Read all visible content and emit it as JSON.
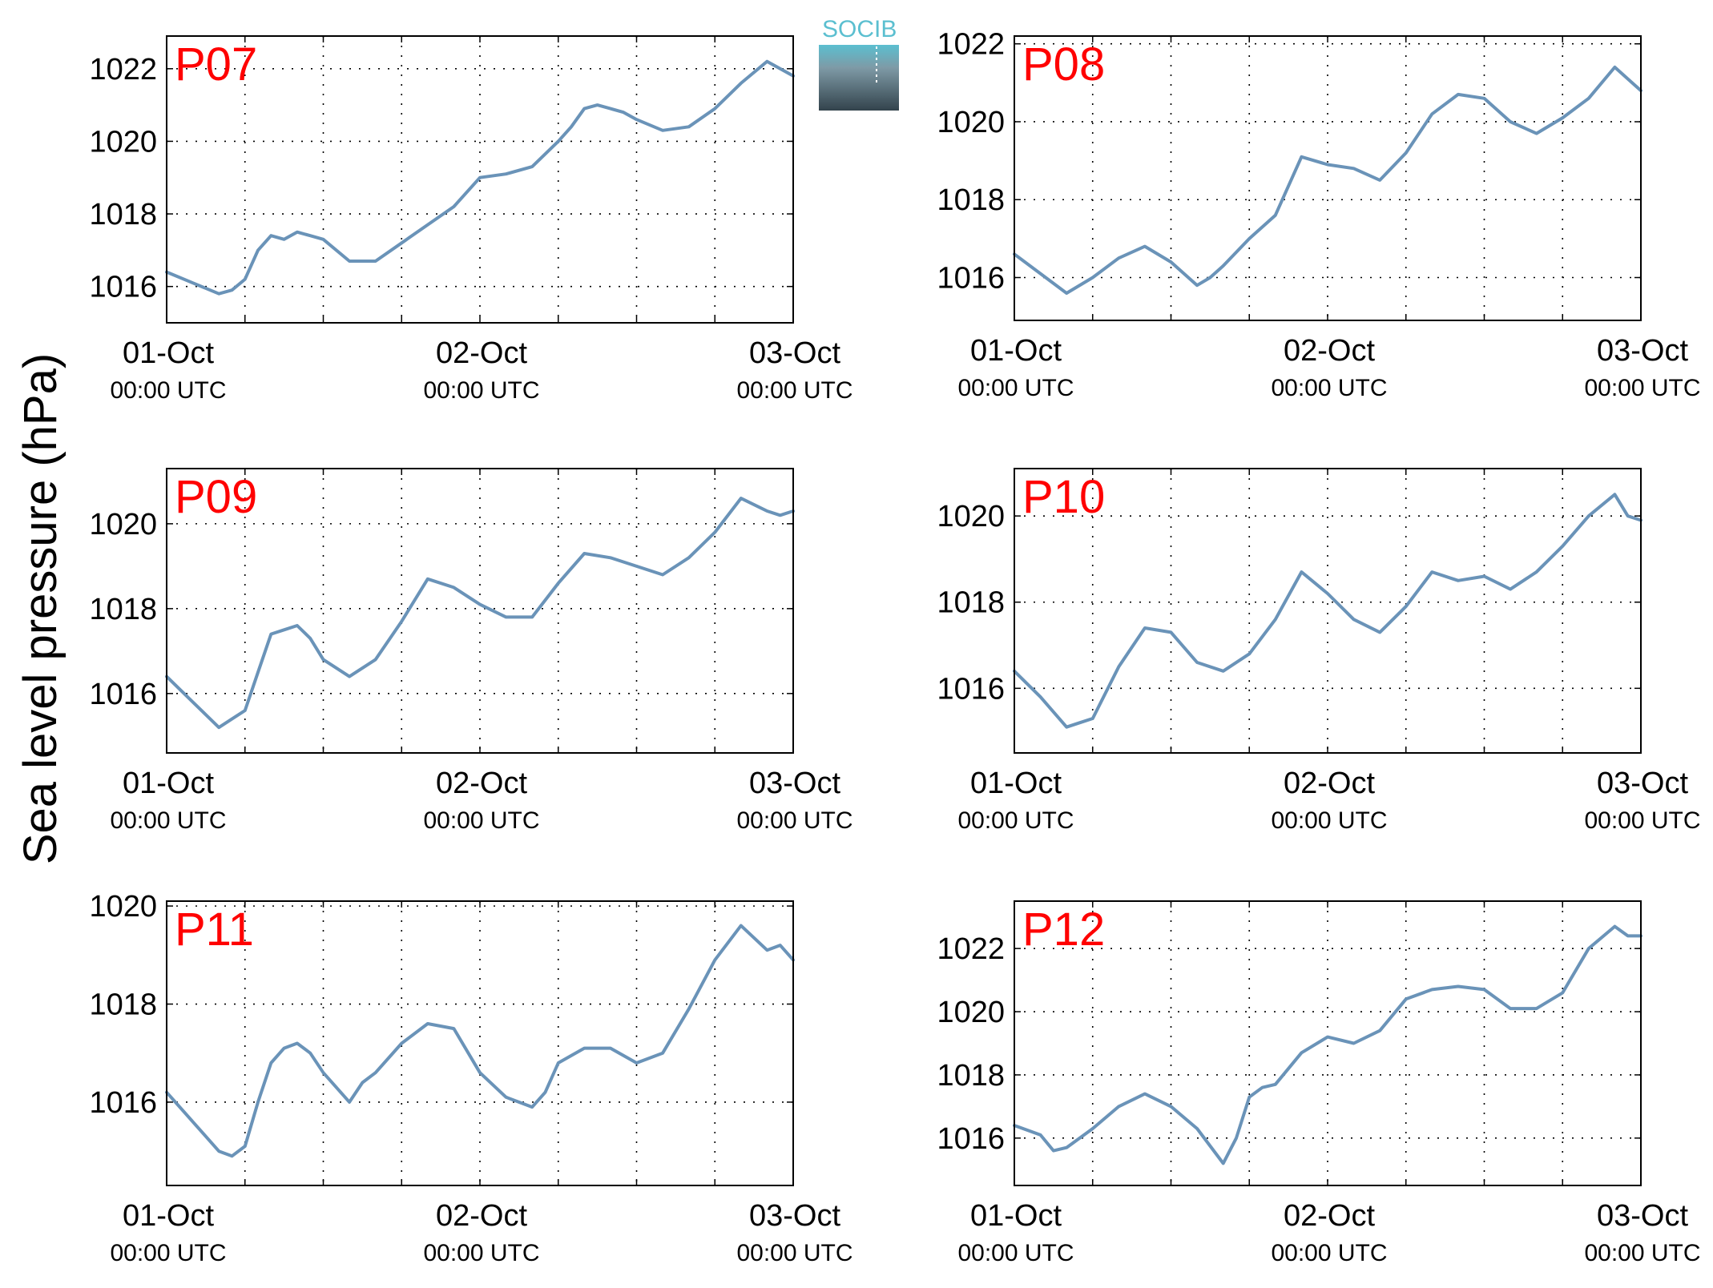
{
  "figure": {
    "ylabel": "Sea level pressure (hPa)",
    "title_color": "#ff0000",
    "line_color": "#6a93b8",
    "logo_text": "SOCIB",
    "logo_color": "#5bbfd0"
  },
  "chart_data": [
    {
      "type": "line",
      "title": "P07",
      "ylim": [
        1015,
        1022.9
      ],
      "yticks": [
        1016,
        1018,
        1020,
        1022
      ],
      "xlim": [
        "2025-10-01T00:00",
        "2025-10-03T00:00"
      ],
      "xticks": [
        {
          "date": "01-Oct",
          "time": "00:00 UTC"
        },
        {
          "date": "02-Oct",
          "time": "00:00 UTC"
        },
        {
          "date": "03-Oct",
          "time": "00:00 UTC"
        }
      ],
      "grid": true,
      "series": [
        {
          "x_hours": [
            0,
            2,
            4,
            5,
            6,
            7,
            8,
            9,
            10,
            11,
            12,
            14,
            16,
            18,
            20,
            22,
            24,
            26,
            28,
            30,
            31,
            32,
            33,
            34,
            35,
            36,
            38,
            40,
            42,
            44,
            46,
            48
          ],
          "values": [
            1016.4,
            1016.1,
            1015.8,
            1015.9,
            1016.2,
            1017.0,
            1017.4,
            1017.3,
            1017.5,
            1017.4,
            1017.3,
            1016.7,
            1016.7,
            1017.2,
            1017.7,
            1018.2,
            1019.0,
            1019.1,
            1019.3,
            1020.0,
            1020.4,
            1020.9,
            1021.0,
            1020.9,
            1020.8,
            1020.6,
            1020.3,
            1020.4,
            1020.9,
            1021.6,
            1022.2,
            1021.8
          ]
        }
      ]
    },
    {
      "type": "line",
      "title": "P08",
      "ylim": [
        1014.9,
        1022.2
      ],
      "yticks": [
        1016,
        1018,
        1020,
        1022
      ],
      "xlim": [
        "2025-10-01T00:00",
        "2025-10-03T00:00"
      ],
      "xticks": [
        {
          "date": "01-Oct",
          "time": "00:00 UTC"
        },
        {
          "date": "02-Oct",
          "time": "00:00 UTC"
        },
        {
          "date": "03-Oct",
          "time": "00:00 UTC"
        }
      ],
      "grid": true,
      "series": [
        {
          "x_hours": [
            0,
            2,
            4,
            6,
            8,
            10,
            12,
            14,
            15,
            16,
            18,
            20,
            22,
            24,
            26,
            28,
            30,
            32,
            34,
            36,
            38,
            40,
            42,
            44,
            46,
            48
          ],
          "values": [
            1016.6,
            1016.1,
            1015.6,
            1016.0,
            1016.5,
            1016.8,
            1016.4,
            1015.8,
            1016.0,
            1016.3,
            1017.0,
            1017.6,
            1019.1,
            1018.9,
            1018.8,
            1018.5,
            1019.2,
            1020.2,
            1020.7,
            1020.6,
            1020.0,
            1019.7,
            1020.1,
            1020.6,
            1021.4,
            1020.8
          ]
        }
      ]
    },
    {
      "type": "line",
      "title": "P09",
      "ylim": [
        1014.6,
        1021.3
      ],
      "yticks": [
        1016,
        1018,
        1020
      ],
      "xlim": [
        "2025-10-01T00:00",
        "2025-10-03T00:00"
      ],
      "xticks": [
        {
          "date": "01-Oct",
          "time": "00:00 UTC"
        },
        {
          "date": "02-Oct",
          "time": "00:00 UTC"
        },
        {
          "date": "03-Oct",
          "time": "00:00 UTC"
        }
      ],
      "grid": true,
      "series": [
        {
          "x_hours": [
            0,
            2,
            4,
            5,
            6,
            7,
            8,
            9,
            10,
            11,
            12,
            14,
            16,
            18,
            20,
            22,
            24,
            26,
            28,
            30,
            32,
            34,
            36,
            38,
            40,
            42,
            44,
            46,
            47,
            48
          ],
          "values": [
            1016.4,
            1015.8,
            1015.2,
            1015.4,
            1015.6,
            1016.5,
            1017.4,
            1017.5,
            1017.6,
            1017.3,
            1016.8,
            1016.4,
            1016.8,
            1017.7,
            1018.7,
            1018.5,
            1018.1,
            1017.8,
            1017.8,
            1018.6,
            1019.3,
            1019.2,
            1019.0,
            1018.8,
            1019.2,
            1019.8,
            1020.6,
            1020.3,
            1020.2,
            1020.3
          ]
        }
      ]
    },
    {
      "type": "line",
      "title": "P10",
      "ylim": [
        1014.5,
        1021.1
      ],
      "yticks": [
        1016,
        1018,
        1020
      ],
      "xlim": [
        "2025-10-01T00:00",
        "2025-10-03T00:00"
      ],
      "xticks": [
        {
          "date": "01-Oct",
          "time": "00:00 UTC"
        },
        {
          "date": "02-Oct",
          "time": "00:00 UTC"
        },
        {
          "date": "03-Oct",
          "time": "00:00 UTC"
        }
      ],
      "grid": true,
      "series": [
        {
          "x_hours": [
            0,
            2,
            4,
            5,
            6,
            8,
            10,
            12,
            14,
            16,
            18,
            20,
            22,
            24,
            26,
            28,
            30,
            32,
            34,
            36,
            38,
            40,
            42,
            44,
            46,
            47,
            48
          ],
          "values": [
            1016.4,
            1015.8,
            1015.1,
            1015.2,
            1015.3,
            1016.5,
            1017.4,
            1017.3,
            1016.6,
            1016.4,
            1016.8,
            1017.6,
            1018.7,
            1018.2,
            1017.6,
            1017.3,
            1017.9,
            1018.7,
            1018.5,
            1018.6,
            1018.3,
            1018.7,
            1019.3,
            1020.0,
            1020.5,
            1020.0,
            1019.9
          ]
        }
      ]
    },
    {
      "type": "line",
      "title": "P11",
      "ylim": [
        1014.3,
        1020.1
      ],
      "yticks": [
        1016,
        1018,
        1020
      ],
      "xlim": [
        "2025-10-01T00:00",
        "2025-10-03T00:00"
      ],
      "xticks": [
        {
          "date": "01-Oct",
          "time": "00:00 UTC"
        },
        {
          "date": "02-Oct",
          "time": "00:00 UTC"
        },
        {
          "date": "03-Oct",
          "time": "00:00 UTC"
        }
      ],
      "grid": true,
      "series": [
        {
          "x_hours": [
            0,
            2,
            4,
            5,
            6,
            7,
            8,
            9,
            10,
            11,
            12,
            14,
            15,
            16,
            18,
            20,
            22,
            24,
            26,
            28,
            29,
            30,
            32,
            34,
            36,
            38,
            40,
            42,
            44,
            46,
            47,
            48
          ],
          "values": [
            1016.2,
            1015.6,
            1015.0,
            1014.9,
            1015.1,
            1016.0,
            1016.8,
            1017.1,
            1017.2,
            1017.0,
            1016.6,
            1016.0,
            1016.4,
            1016.6,
            1017.2,
            1017.6,
            1017.5,
            1016.6,
            1016.1,
            1015.9,
            1016.2,
            1016.8,
            1017.1,
            1017.1,
            1016.8,
            1017.0,
            1017.9,
            1018.9,
            1019.6,
            1019.1,
            1019.2,
            1018.9
          ]
        }
      ]
    },
    {
      "type": "line",
      "title": "P12",
      "ylim": [
        1014.5,
        1023.5
      ],
      "yticks": [
        1016,
        1018,
        1020,
        1022
      ],
      "xlim": [
        "2025-10-01T00:00",
        "2025-10-03T00:00"
      ],
      "xticks": [
        {
          "date": "01-Oct",
          "time": "00:00 UTC"
        },
        {
          "date": "02-Oct",
          "time": "00:00 UTC"
        },
        {
          "date": "03-Oct",
          "time": "00:00 UTC"
        }
      ],
      "grid": true,
      "series": [
        {
          "x_hours": [
            0,
            2,
            3,
            4,
            6,
            8,
            10,
            12,
            14,
            16,
            17,
            18,
            19,
            20,
            22,
            24,
            26,
            28,
            30,
            32,
            34,
            36,
            38,
            40,
            42,
            44,
            46,
            47,
            48
          ],
          "values": [
            1016.4,
            1016.1,
            1015.6,
            1015.7,
            1016.3,
            1017.0,
            1017.4,
            1017.0,
            1016.3,
            1015.2,
            1016.0,
            1017.3,
            1017.6,
            1017.7,
            1018.7,
            1019.2,
            1019.0,
            1019.4,
            1020.4,
            1020.7,
            1020.8,
            1020.7,
            1020.1,
            1020.1,
            1020.6,
            1022.0,
            1022.7,
            1022.4,
            1022.4
          ]
        }
      ]
    }
  ]
}
